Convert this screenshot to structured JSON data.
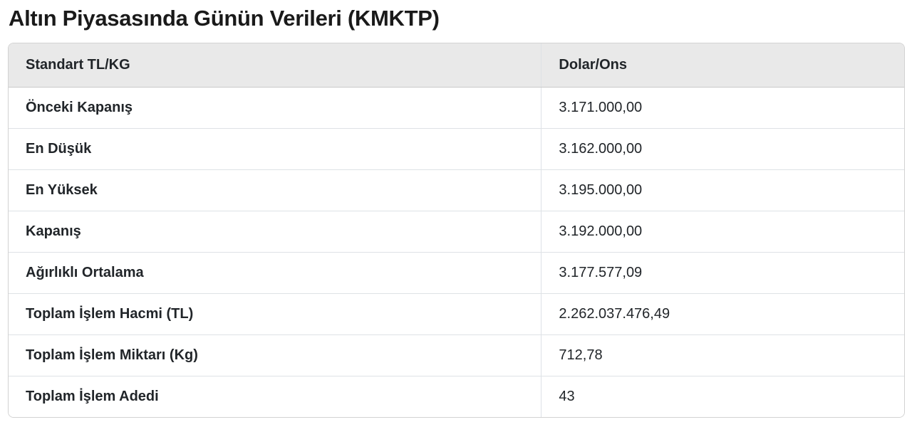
{
  "page": {
    "title": "Altın Piyasasında Günün Verileri (KMKTP)"
  },
  "colors": {
    "header_bg": "#e9e9e9",
    "outer_border": "#d2d2d2",
    "row_divider": "#dee2e6",
    "text": "#212529"
  },
  "chart_data": {
    "type": "table",
    "title": "Altın Piyasasında Günün Verileri (KMKTP)",
    "columns": [
      "Standart TL/KG",
      "Dolar/Ons"
    ],
    "rows": [
      {
        "label": "Önceki Kapanış",
        "value": "3.171.000,00"
      },
      {
        "label": "En Düşük",
        "value": "3.162.000,00"
      },
      {
        "label": "En Yüksek",
        "value": "3.195.000,00"
      },
      {
        "label": "Kapanış",
        "value": "3.192.000,00"
      },
      {
        "label": "Ağırlıklı Ortalama",
        "value": "3.177.577,09"
      },
      {
        "label": "Toplam İşlem Hacmi (TL)",
        "value": "2.262.037.476,49"
      },
      {
        "label": "Toplam İşlem Miktarı (Kg)",
        "value": "712,78"
      },
      {
        "label": "Toplam İşlem Adedi",
        "value": "43"
      }
    ]
  }
}
